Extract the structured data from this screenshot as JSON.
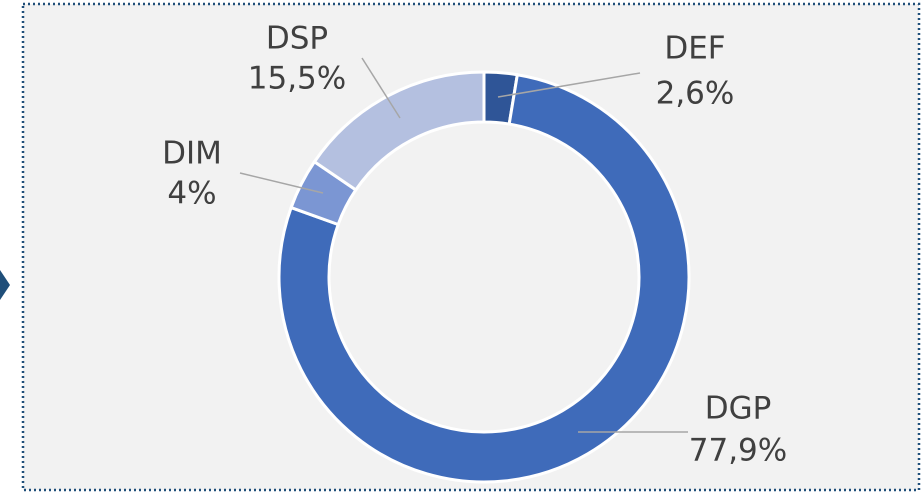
{
  "chart_data": {
    "type": "donut",
    "categories": [
      "DEF",
      "DGP",
      "DIM",
      "DSP"
    ],
    "values": [
      2.6,
      77.9,
      4,
      15.5
    ],
    "value_labels": [
      "2,6%",
      "77,9%",
      "4%",
      "15,5%"
    ],
    "colors": [
      "#2f5597",
      "#3f6bba",
      "#7b96d3",
      "#b4c0e0"
    ]
  }
}
